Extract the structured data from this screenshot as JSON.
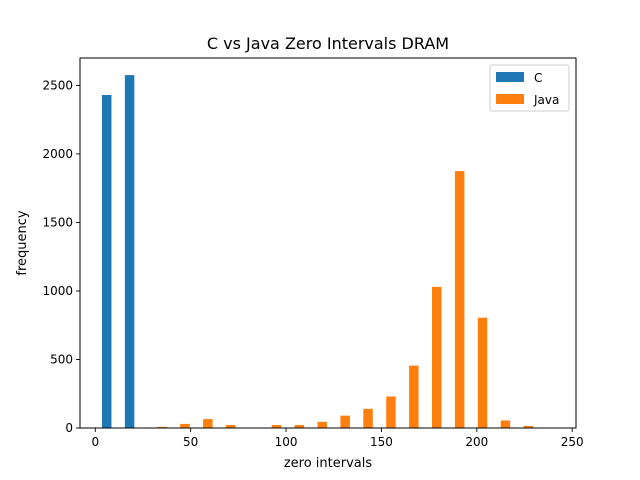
{
  "chart_data": {
    "type": "bar",
    "title": "C vs Java Zero Intervals DRAM",
    "xlabel": "zero intervals",
    "ylabel": "frequency",
    "xlim": [
      -8,
      252
    ],
    "ylim": [
      0,
      2700
    ],
    "xticks": [
      0,
      50,
      100,
      150,
      200,
      250
    ],
    "yticks": [
      0,
      500,
      1000,
      1500,
      2000,
      2500
    ],
    "legend_position": "upper right",
    "series": [
      {
        "name": "C",
        "color": "#1f77b4",
        "bars": [
          {
            "x": 6,
            "value": 2430
          },
          {
            "x": 18,
            "value": 2575
          }
        ]
      },
      {
        "name": "Java",
        "color": "#ff7f0e",
        "bars": [
          {
            "x": 35,
            "value": 8
          },
          {
            "x": 47,
            "value": 30
          },
          {
            "x": 59,
            "value": 65
          },
          {
            "x": 71,
            "value": 22
          },
          {
            "x": 95,
            "value": 22
          },
          {
            "x": 107,
            "value": 22
          },
          {
            "x": 119,
            "value": 45
          },
          {
            "x": 131,
            "value": 90
          },
          {
            "x": 143,
            "value": 140
          },
          {
            "x": 155,
            "value": 230
          },
          {
            "x": 167,
            "value": 455
          },
          {
            "x": 179,
            "value": 1030
          },
          {
            "x": 191,
            "value": 1875
          },
          {
            "x": 203,
            "value": 805
          },
          {
            "x": 215,
            "value": 55
          },
          {
            "x": 227,
            "value": 15
          }
        ]
      }
    ]
  }
}
